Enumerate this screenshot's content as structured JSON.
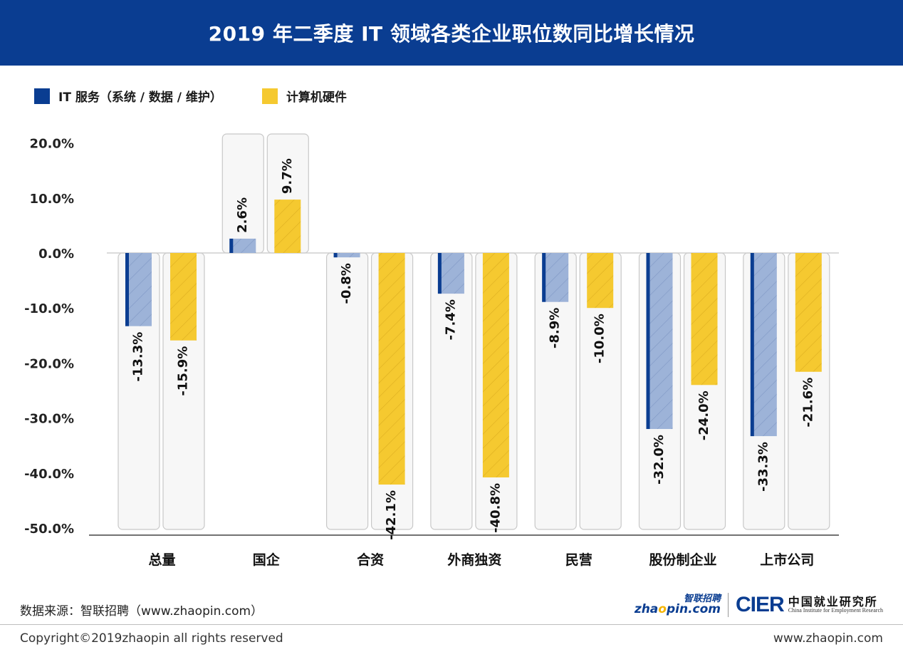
{
  "header": {
    "title": "2019 年二季度 IT 领域各类企业职位数同比增长情况"
  },
  "legend": [
    {
      "label": "IT 服务（系统 / 数据 / 维护）",
      "color": "#0a3d91"
    },
    {
      "label": "计算机硬件",
      "color": "#f5c930"
    }
  ],
  "colors": {
    "series1_fill": "#9db3d8",
    "series1_edge": "#0a3d91",
    "series2_fill": "#f5c930",
    "track": "#f7f7f7",
    "track_border": "#c8c8c8",
    "zero_line": "#cfcfcf",
    "axis_line": "#444444"
  },
  "chart_data": {
    "type": "bar",
    "categories": [
      "总量",
      "国企",
      "合资",
      "外商独资",
      "民营",
      "股份制企业",
      "上市公司"
    ],
    "series": [
      {
        "name": "IT 服务（系统 / 数据 / 维护）",
        "values": [
          -13.3,
          2.6,
          -0.8,
          -7.4,
          -8.9,
          -32.0,
          -33.3
        ],
        "labels": [
          "-13.3%",
          "2.6%",
          "-0.8%",
          "-7.4%",
          "-8.9%",
          "-32.0%",
          "-33.3%"
        ]
      },
      {
        "name": "计算机硬件",
        "values": [
          -15.9,
          9.7,
          -42.1,
          -40.8,
          -10.0,
          -24.0,
          -21.6
        ],
        "labels": [
          "-15.9%",
          "9.7%",
          "-42.1%",
          "-40.8%",
          "-10.0%",
          "-24.0%",
          "-21.6%"
        ]
      }
    ],
    "y_ticks": [
      "20.0%",
      "10.0%",
      "0.0%",
      "-10.0%",
      "-20.0%",
      "-30.0%",
      "-40.0%",
      "-50.0%"
    ],
    "y_tick_values": [
      20,
      10,
      0,
      -10,
      -20,
      -30,
      -40,
      -50
    ],
    "ylim": [
      -50,
      20
    ],
    "legend_position": "top-left",
    "grid": false
  },
  "footer": {
    "source": "数据来源：智联招聘（www.zhaopin.com）",
    "zhaopin_logo_cn": "智联招聘",
    "zhaopin_logo_en_a": "zha",
    "zhaopin_logo_en_o": "o",
    "zhaopin_logo_en_b": "pin.com",
    "cier_mark": "CIER",
    "cier_cn": "中国就业研究所",
    "cier_en": "China Institute for Employment Research",
    "copyright": "Copyright©2019zhaopin all rights reserved",
    "website": "www.zhaopin.com"
  }
}
